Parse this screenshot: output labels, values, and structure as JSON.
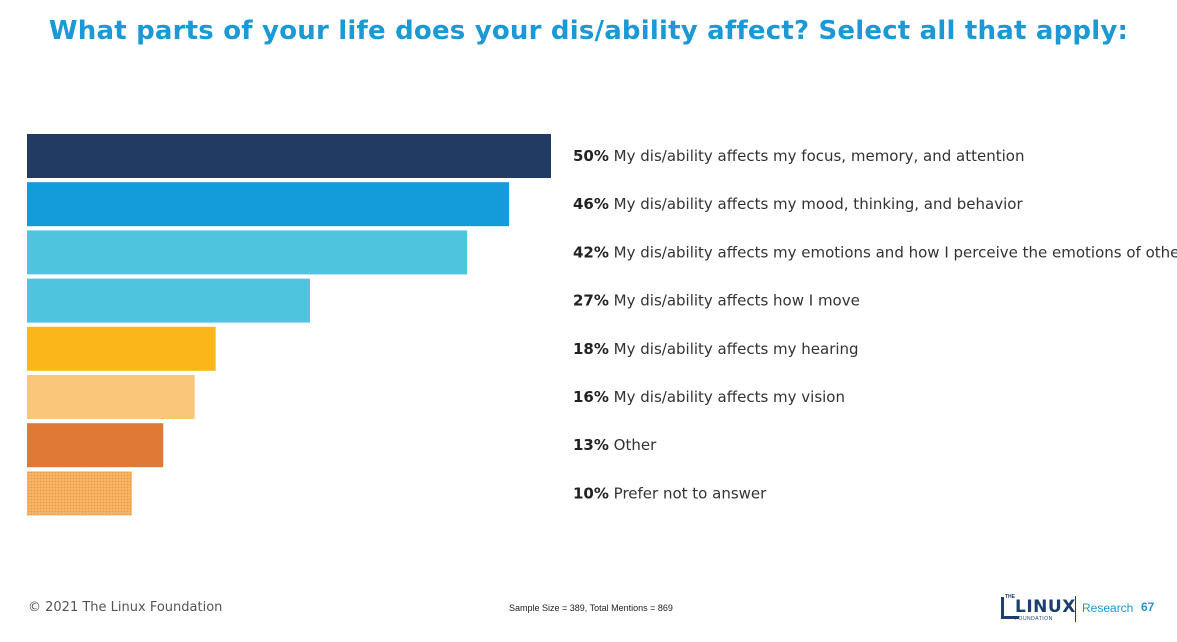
{
  "header": {
    "title": "What parts of your life does your dis/ability affect? Select all that apply:"
  },
  "chart_data": {
    "type": "bar",
    "orientation": "horizontal",
    "title": "What parts of your life does your dis/ability affect? Select all that apply:",
    "unit": "%",
    "categories": [
      "My dis/ability affects my focus, memory, and attention",
      "My dis/ability affects my mood, thinking, and behavior",
      "My dis/ability affects my emotions and how I perceive the emotions of others",
      "My dis/ability affects how I move",
      "My dis/ability affects my hearing",
      "My dis/ability affects my vision",
      "Other",
      "Prefer not to answer"
    ],
    "values": [
      50,
      46,
      42,
      27,
      18,
      16,
      13,
      10
    ],
    "value_labels": [
      "50%",
      "46%",
      "42%",
      "27%",
      "18%",
      "16%",
      "13%",
      "10%"
    ],
    "colors": [
      "#213b63",
      "#149bd9",
      "#4fc4de",
      "#4fc4de",
      "#fbb61a",
      "#f9c77a",
      "#df7935",
      "#f6b567"
    ],
    "patterned": [
      false,
      false,
      false,
      false,
      false,
      false,
      false,
      true
    ],
    "xlim": [
      0,
      50
    ],
    "grid": false,
    "legend": "none"
  },
  "footer": {
    "copyright": "© 2021 The Linux Foundation",
    "sample": "Sample Size = 389, Total Mentions = 869",
    "logo_the": "THE",
    "logo_linux": "LINUX",
    "logo_foundation": "FOUNDATION",
    "research": "Research",
    "page": "67"
  }
}
